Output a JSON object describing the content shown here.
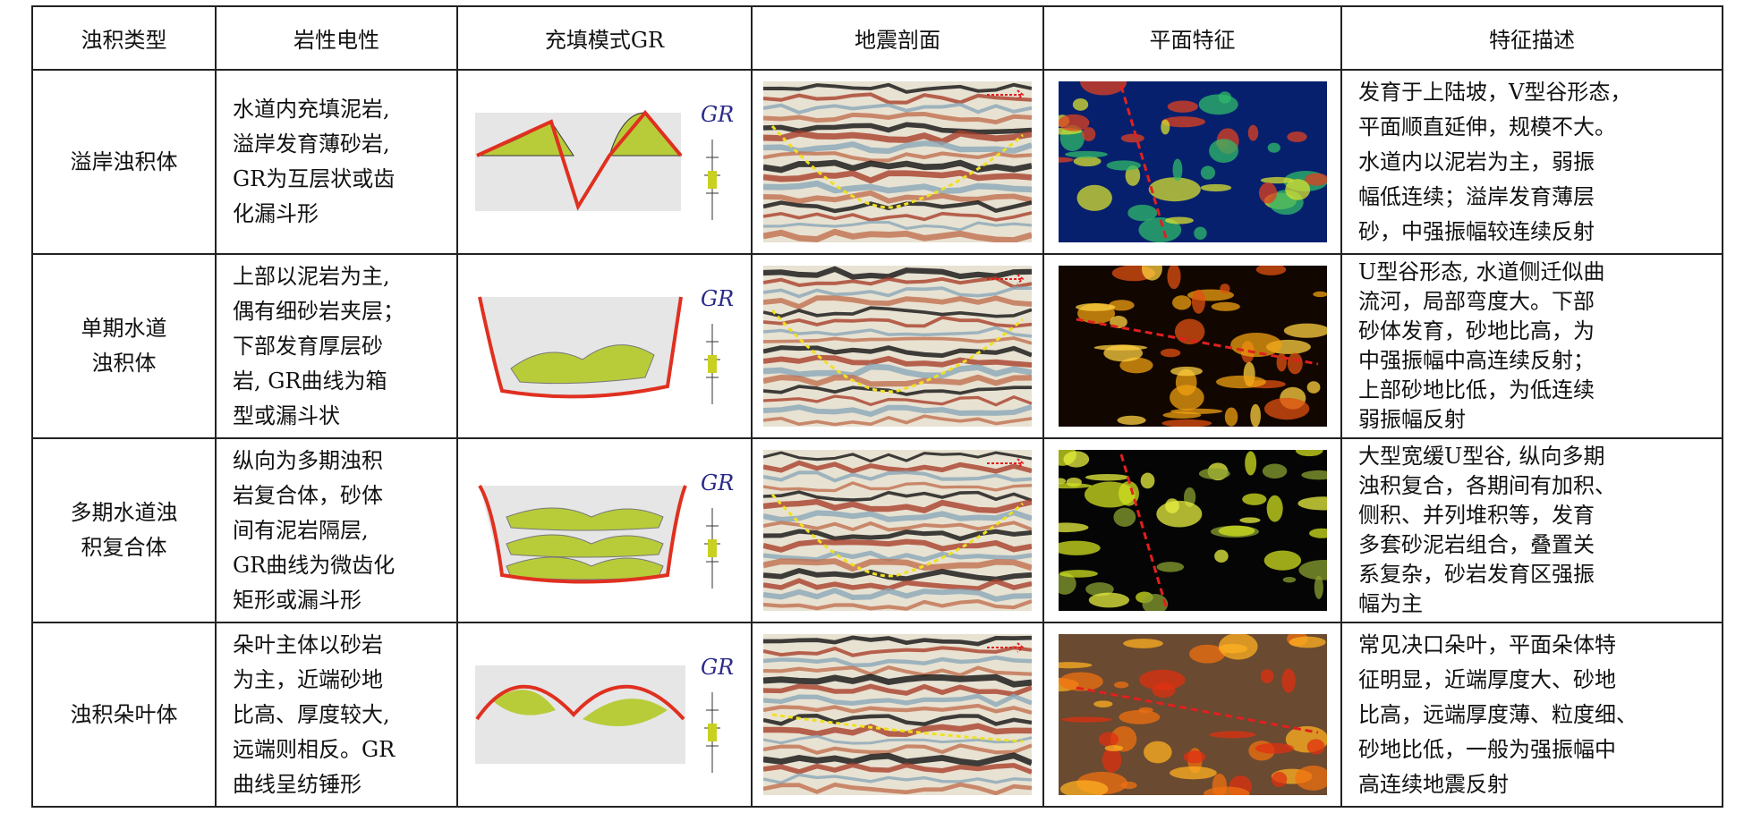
{
  "table": {
    "header": [
      "浊积类型",
      "岩性电性",
      "充填模式GR",
      "地震剖面",
      "平面特征",
      "特征描述"
    ],
    "rows": [
      {
        "type": [
          "溢岸浊积体"
        ],
        "lithology": [
          "水道内充填泥岩,",
          "溢岸发育薄砂岩,",
          "GR为互层状或齿",
          "化漏斗形"
        ],
        "gr_label": "GR",
        "description": [
          "发育于上陆坡，V型谷形态，",
          "平面顺直延伸，规模不大。",
          "水道内以泥岩为主，弱振",
          "幅低连续；溢岸发育薄层",
          "砂，中强振幅较连续反射"
        ]
      },
      {
        "type": [
          "单期水道",
          "浊积体"
        ],
        "lithology": [
          "上部以泥岩为主,",
          "偶有细砂岩夹层；",
          "下部发育厚层砂",
          "岩, GR曲线为箱",
          "型或漏斗状"
        ],
        "gr_label": "GR",
        "description": [
          "U型谷形态, 水道侧迁似曲",
          "流河，局部弯度大。下部",
          "砂体发育，砂地比高，为",
          "中强振幅中高连续反射；",
          "上部砂地比低，为低连续",
          "弱振幅反射"
        ]
      },
      {
        "type": [
          "多期水道浊",
          "积复合体"
        ],
        "lithology": [
          "纵向为多期浊积",
          "岩复合体，砂体",
          "间有泥岩隔层,",
          "GR曲线为微齿化",
          "矩形或漏斗形"
        ],
        "gr_label": "GR",
        "description": [
          "大型宽缓U型谷, 纵向多期",
          "浊积复合，各期间有加积、",
          "侧积、并列堆积等，发育",
          "多套砂泥岩组合，叠置关",
          "系复杂，砂岩发育区强振",
          "幅为主"
        ]
      },
      {
        "type": [
          "浊积朵叶体"
        ],
        "lithology": [
          "朵叶主体以砂岩",
          "为主，近端砂地",
          "比高、厚度较大,",
          "远端则相反。GR",
          "曲线呈纺锤形"
        ],
        "gr_label": "GR",
        "description": [
          "常见决口朵叶，平面朵体特",
          "征明显，近端厚度大、砂地",
          "比高，远端厚度薄、粒度细、",
          "砂地比低，一般为强振幅中",
          "高连续地震反射"
        ]
      }
    ]
  }
}
